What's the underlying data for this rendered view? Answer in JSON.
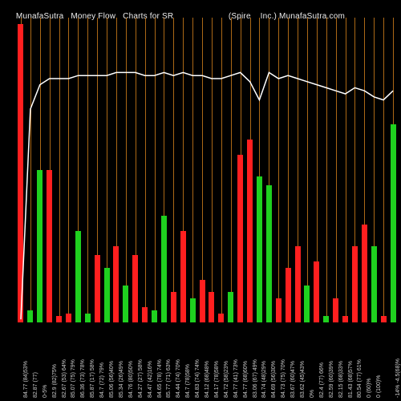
{
  "title_left": "MunafaSutra   Money Flow   Charts for SR",
  "title_right": "(Spire    Inc.) MunafaSutra.com",
  "chart": {
    "type": "bar+line",
    "background_color": "#000000",
    "grid_color": "#c97a1a",
    "line_color": "#ffffff",
    "n": 40,
    "y_max": 100,
    "colors": {
      "pos": "#1fd11f",
      "neg": "#ff1f1f"
    },
    "bars": [
      {
        "v": 98,
        "c": "neg"
      },
      {
        "v": 4,
        "c": "pos"
      },
      {
        "v": 50,
        "c": "pos"
      },
      {
        "v": 50,
        "c": "neg"
      },
      {
        "v": 2,
        "c": "neg"
      },
      {
        "v": 3,
        "c": "neg"
      },
      {
        "v": 30,
        "c": "pos"
      },
      {
        "v": 3,
        "c": "pos"
      },
      {
        "v": 22,
        "c": "neg"
      },
      {
        "v": 18,
        "c": "pos"
      },
      {
        "v": 25,
        "c": "neg"
      },
      {
        "v": 12,
        "c": "pos"
      },
      {
        "v": 22,
        "c": "neg"
      },
      {
        "v": 5,
        "c": "neg"
      },
      {
        "v": 4,
        "c": "pos"
      },
      {
        "v": 35,
        "c": "pos"
      },
      {
        "v": 10,
        "c": "neg"
      },
      {
        "v": 30,
        "c": "neg"
      },
      {
        "v": 8,
        "c": "pos"
      },
      {
        "v": 14,
        "c": "neg"
      },
      {
        "v": 10,
        "c": "neg"
      },
      {
        "v": 3,
        "c": "neg"
      },
      {
        "v": 10,
        "c": "pos"
      },
      {
        "v": 55,
        "c": "neg"
      },
      {
        "v": 60,
        "c": "neg"
      },
      {
        "v": 48,
        "c": "pos"
      },
      {
        "v": 45,
        "c": "pos"
      },
      {
        "v": 8,
        "c": "neg"
      },
      {
        "v": 18,
        "c": "neg"
      },
      {
        "v": 25,
        "c": "neg"
      },
      {
        "v": 12,
        "c": "pos"
      },
      {
        "v": 20,
        "c": "neg"
      },
      {
        "v": 2,
        "c": "pos"
      },
      {
        "v": 8,
        "c": "neg"
      },
      {
        "v": 2,
        "c": "neg"
      },
      {
        "v": 25,
        "c": "neg"
      },
      {
        "v": 32,
        "c": "neg"
      },
      {
        "v": 25,
        "c": "pos"
      },
      {
        "v": 2,
        "c": "neg"
      },
      {
        "v": 65,
        "c": "pos"
      }
    ],
    "line": [
      1,
      70,
      78,
      80,
      80,
      80,
      81,
      81,
      81,
      81,
      82,
      82,
      82,
      81,
      81,
      82,
      81,
      82,
      81,
      81,
      80,
      80,
      81,
      82,
      79,
      73,
      82,
      80,
      81,
      80,
      79,
      78,
      77,
      76,
      75,
      77,
      76,
      74,
      73,
      76
    ],
    "labels": [
      "84.77 (84)53%",
      "82.87 (77) ",
      "0-5% ",
      "82.9 (82)75%",
      "82.67 (53) 64% ",
      "85.07 (75) 79%",
      "86.36 (73) 78%",
      "85.87 (17) 58%",
      "84.7 (72) 79%",
      "85.06 (56)40%",
      "85.34 (26)49%",
      "84.76 (80)50%",
      "84.27 (27) 58%",
      "84.47 (42)16%",
      "84.65 (78) 74%",
      "85.77 (71) 63%",
      "84.44 (74) 70%",
      "84.7 (78)58%",
      "84.83 (74) 74%",
      "84.12 (68)48%",
      "84.17 (78)58%",
      "84.72 (58)23%",
      "84.77 (41) 73%",
      "84.77 (68)60%",
      "83.06 (67) 49% ",
      "84.74 (48)29%",
      "84.69 (56)30%",
      "84.73 (75) 70%",
      "83.67 (60)47%",
      "83.62 (45)43%",
      "0% ",
      "82.4 (77) 66%",
      "82.59 (60)39%",
      "82.15 (68)33%",
      "81.43 (68)57%",
      "80.54 (77) 61% ",
      "0 (60)% ",
      "0 (100)% ",
      " ",
      "-14%  -4.5(68)% "
    ]
  }
}
